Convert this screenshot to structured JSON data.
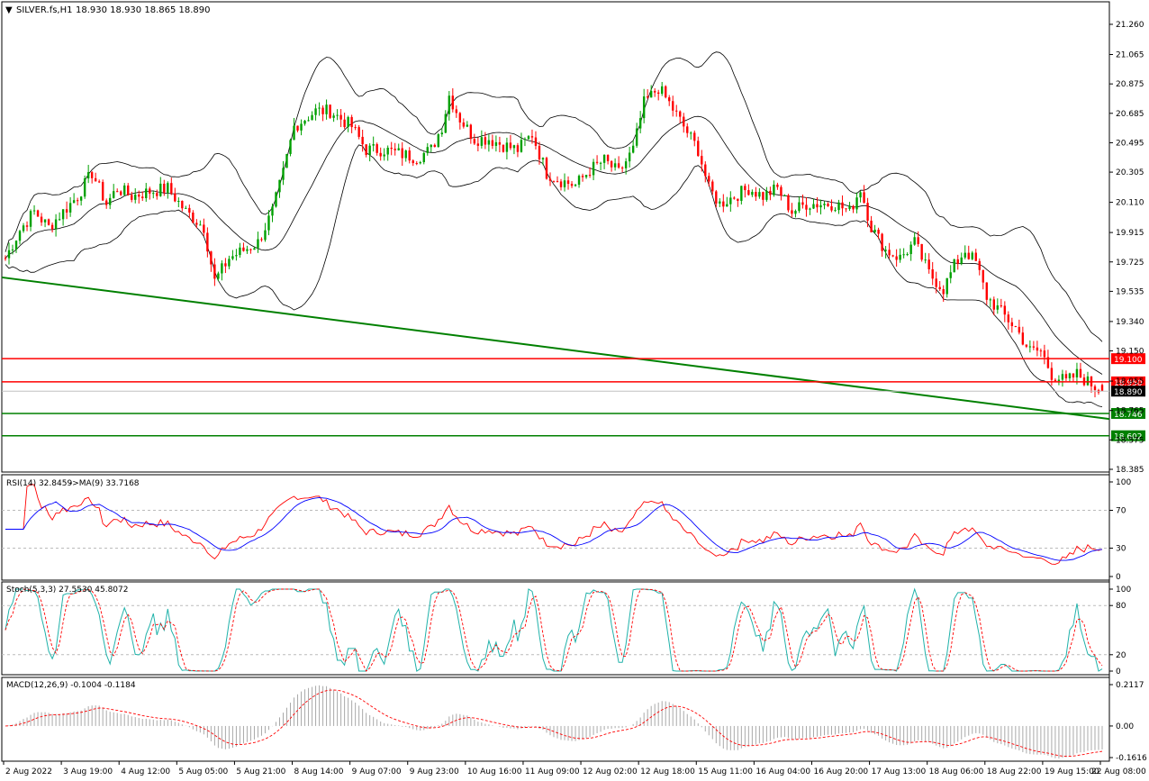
{
  "chart_data": [
    {
      "type": "candlestick",
      "header": {
        "title_arrow": "▼",
        "symbol": "SILVER.fs,H1",
        "ohlc": "18.930 18.930 18.865 18.890"
      },
      "ylim": [
        18.385,
        21.36
      ],
      "price_ticks": [
        "21.260",
        "21.065",
        "20.875",
        "20.685",
        "20.495",
        "20.305",
        "20.110",
        "19.915",
        "19.725",
        "19.535",
        "19.340",
        "19.150",
        "18.955",
        "18.765",
        "18.575",
        "18.385"
      ],
      "x_labels": [
        "2 Aug 2022",
        "3 Aug 19:00",
        "4 Aug 12:00",
        "5 Aug 05:00",
        "5 Aug 21:00",
        "8 Aug 14:00",
        "9 Aug 07:00",
        "9 Aug 23:00",
        "10 Aug 16:00",
        "11 Aug 09:00",
        "12 Aug 02:00",
        "12 Aug 18:00",
        "15 Aug 11:00",
        "16 Aug 04:00",
        "16 Aug 20:00",
        "17 Aug 13:00",
        "18 Aug 06:00",
        "18 Aug 22:00",
        "19 Aug 15:00",
        "22 Aug 08:00"
      ],
      "close_path": [
        [
          0,
          19.75
        ],
        [
          4,
          19.93
        ],
        [
          8,
          20.05
        ],
        [
          12,
          19.95
        ],
        [
          16,
          20.05
        ],
        [
          20,
          20.15
        ],
        [
          24,
          20.3
        ],
        [
          28,
          20.1
        ],
        [
          31,
          20.2
        ],
        [
          35,
          20.15
        ],
        [
          40,
          20.18
        ],
        [
          45,
          20.2
        ],
        [
          50,
          20.05
        ],
        [
          55,
          19.95
        ],
        [
          58,
          19.6
        ],
        [
          62,
          19.75
        ],
        [
          66,
          19.8
        ],
        [
          70,
          19.85
        ],
        [
          74,
          20.05
        ],
        [
          77,
          20.3
        ],
        [
          80,
          20.6
        ],
        [
          83,
          20.65
        ],
        [
          86,
          20.7
        ],
        [
          90,
          20.7
        ],
        [
          93,
          20.65
        ],
        [
          96,
          20.6
        ],
        [
          100,
          20.45
        ],
        [
          105,
          20.45
        ],
        [
          110,
          20.42
        ],
        [
          114,
          20.4
        ],
        [
          118,
          20.45
        ],
        [
          121,
          20.6
        ],
        [
          123,
          20.8
        ],
        [
          126,
          20.65
        ],
        [
          130,
          20.52
        ],
        [
          134,
          20.52
        ],
        [
          138,
          20.48
        ],
        [
          142,
          20.45
        ],
        [
          146,
          20.55
        ],
        [
          150,
          20.3
        ],
        [
          154,
          20.25
        ],
        [
          158,
          20.22
        ],
        [
          162,
          20.32
        ],
        [
          166,
          20.38
        ],
        [
          170,
          20.3
        ],
        [
          174,
          20.45
        ],
        [
          177,
          20.75
        ],
        [
          181,
          20.85
        ],
        [
          184,
          20.75
        ],
        [
          188,
          20.6
        ],
        [
          192,
          20.45
        ],
        [
          195,
          20.2
        ],
        [
          198,
          20.1
        ],
        [
          202,
          20.15
        ],
        [
          206,
          20.2
        ],
        [
          210,
          20.15
        ],
        [
          214,
          20.2
        ],
        [
          218,
          20.05
        ],
        [
          222,
          20.1
        ],
        [
          226,
          20.1
        ],
        [
          230,
          20.1
        ],
        [
          234,
          20.05
        ],
        [
          237,
          20.2
        ],
        [
          240,
          19.95
        ],
        [
          244,
          19.8
        ],
        [
          248,
          19.75
        ],
        [
          252,
          19.85
        ],
        [
          256,
          19.65
        ],
        [
          260,
          19.55
        ],
        [
          263,
          19.7
        ],
        [
          266,
          19.8
        ],
        [
          269,
          19.72
        ],
        [
          272,
          19.5
        ],
        [
          276,
          19.4
        ],
        [
          280,
          19.3
        ],
        [
          284,
          19.15
        ],
        [
          287,
          19.15
        ],
        [
          290,
          19.0
        ],
        [
          294,
          18.95
        ],
        [
          297,
          19.0
        ],
        [
          300,
          18.95
        ],
        [
          304,
          18.89
        ]
      ],
      "indicators": [
        {
          "name": "RSI(14) 32.8459",
          "signal": "->MA(9) 33.7168",
          "ticks": [
            "100",
            "70",
            "30",
            "0"
          ]
        },
        {
          "name": "Stoch(5,3,3) 27.5530 45.8072",
          "ticks": [
            "100",
            "80",
            "20",
            "0"
          ]
        },
        {
          "name": "MACD(12,26,9) -0.1004 -0.1184",
          "ticks": [
            "0.2117",
            "0.00",
            "-0.1616"
          ]
        }
      ],
      "levels": [
        {
          "label": "19.100",
          "color": "#ff0000"
        },
        {
          "label": "18.950",
          "color": "#ff0000"
        },
        {
          "label": "18.890",
          "color": "#000000"
        },
        {
          "label": "18.746",
          "color": "#008000"
        },
        {
          "label": "18.602",
          "color": "#008000"
        }
      ],
      "colors": {
        "bull": "#00a000",
        "bear": "#ff0000",
        "band": "#000000",
        "rsi": "#ff0000",
        "rsi_ma": "#0000ff",
        "stoch_main": "#20b2aa",
        "stoch_signal": "#ff0000",
        "macd_hist": "#a9a9a9",
        "macd_signal": "#ff0000",
        "trendline": "#008000"
      }
    }
  ]
}
